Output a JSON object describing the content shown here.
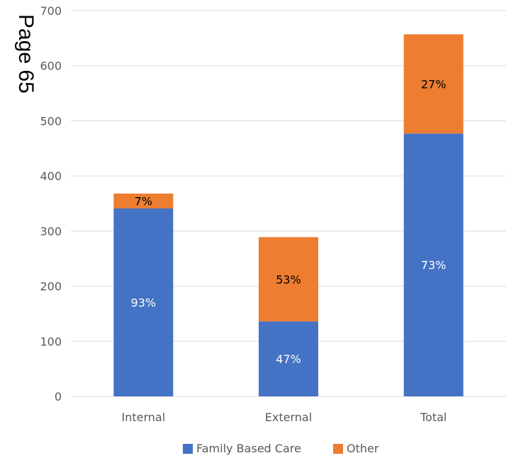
{
  "page_header": {
    "text": "Page 65"
  },
  "chart_data": {
    "type": "bar",
    "stacked": true,
    "categories": [
      "Internal",
      "External",
      "Total"
    ],
    "series": [
      {
        "name": "Family Based Care",
        "color": "#4472C4",
        "label_color": "#ffffff",
        "values": [
          341,
          136,
          477
        ],
        "labels": [
          "93%",
          "47%",
          "73%"
        ]
      },
      {
        "name": "Other",
        "color": "#ED7D31",
        "label_color": "#000000",
        "values": [
          27,
          153,
          180
        ],
        "labels": [
          "7%",
          "53%",
          "27%"
        ]
      }
    ],
    "ylim": [
      0,
      700
    ],
    "yticks": [
      0,
      100,
      200,
      300,
      400,
      500,
      600,
      700
    ],
    "grid": true,
    "legend": "bottom"
  }
}
